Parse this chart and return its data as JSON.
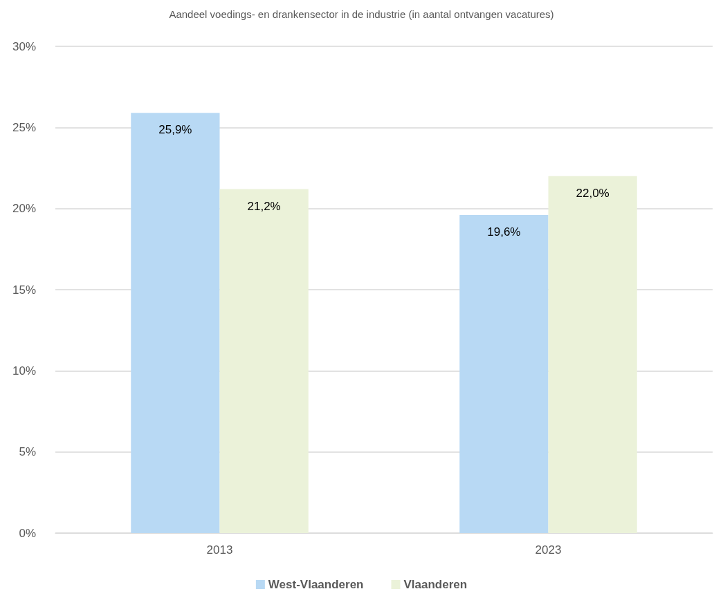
{
  "chart_data": {
    "type": "bar",
    "title": "Aandeel voedings- en drankensector in de industrie (in aantal ontvangen vacatures)",
    "categories": [
      "2013",
      "2023"
    ],
    "series": [
      {
        "name": "West-Vlaanderen",
        "color": "#b8d9f4",
        "values": [
          25.9,
          19.6
        ],
        "value_labels": [
          "25,9%",
          "19,6%"
        ]
      },
      {
        "name": "Vlaanderen",
        "color": "#ebf2d9",
        "values": [
          21.2,
          22.0
        ],
        "value_labels": [
          "21,2%",
          "22,0%"
        ]
      }
    ],
    "ylim": [
      0,
      30
    ],
    "yticks": [
      {
        "value": 0,
        "label": "0%"
      },
      {
        "value": 5,
        "label": "5%"
      },
      {
        "value": 10,
        "label": "10%"
      },
      {
        "value": 15,
        "label": "15%"
      },
      {
        "value": 20,
        "label": "20%"
      },
      {
        "value": 25,
        "label": "25%"
      },
      {
        "value": 30,
        "label": "30%"
      }
    ],
    "grid": "y",
    "legend": "bottom"
  }
}
